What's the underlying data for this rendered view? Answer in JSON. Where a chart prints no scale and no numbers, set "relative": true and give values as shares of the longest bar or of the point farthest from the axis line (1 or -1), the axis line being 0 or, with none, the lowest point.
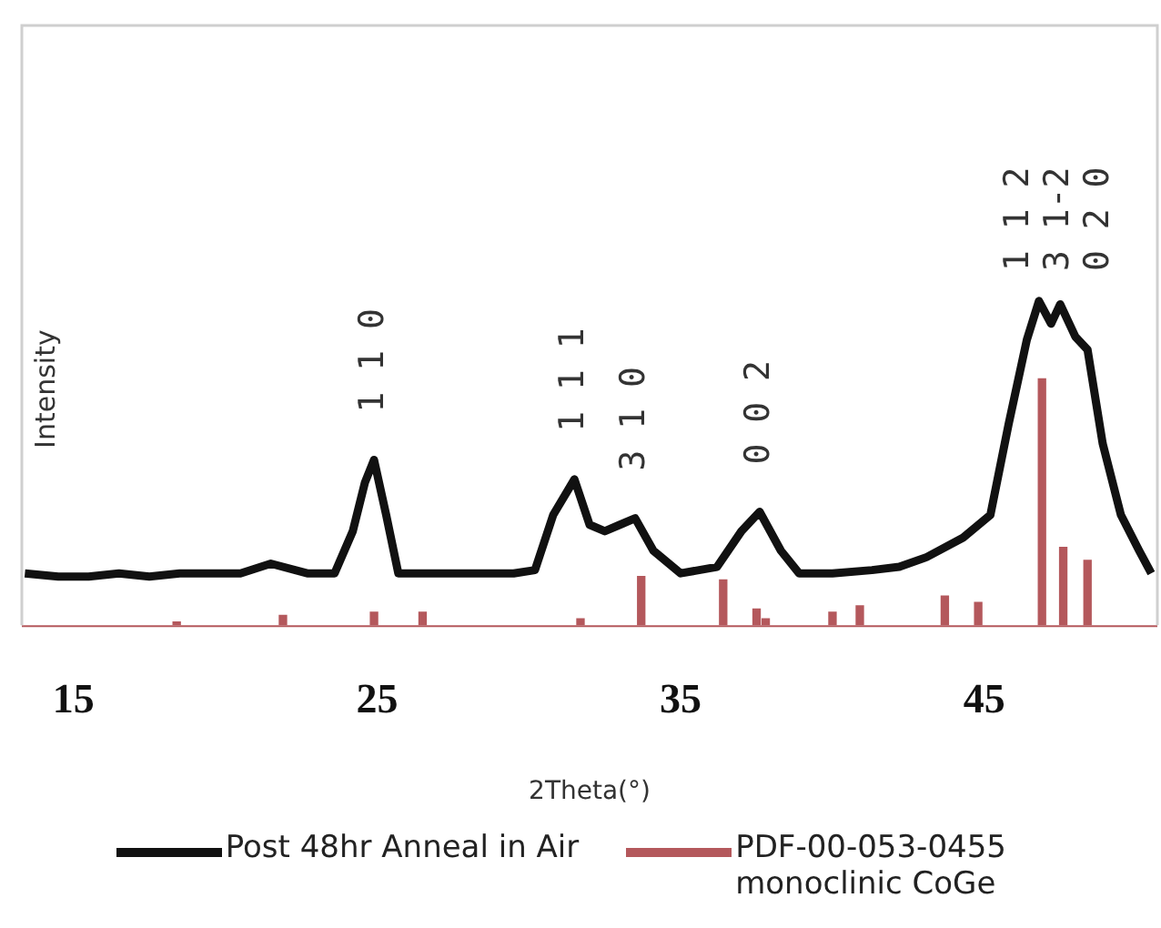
{
  "chart_data": {
    "type": "line",
    "relative": true,
    "xlabel": "2Theta(°)",
    "ylabel": "Intensity",
    "xlim": [
      13.3,
      50.7
    ],
    "xticks": [
      15,
      25,
      35,
      45
    ],
    "grid": false,
    "legend": "bottom",
    "marker": "none",
    "series": [
      {
        "name": "Post 48hr Anneal in Air",
        "color": "#111111",
        "x": [
          13.4,
          14.5,
          15.5,
          16.5,
          17.5,
          18.5,
          19.5,
          20.5,
          21.5,
          22.7,
          23.6,
          24.2,
          24.6,
          24.9,
          25.3,
          25.7,
          26.5,
          28.1,
          29.5,
          30.2,
          30.8,
          31.5,
          32.0,
          32.5,
          33.0,
          33.5,
          34.1,
          35.0,
          36.2,
          37.0,
          37.6,
          38.3,
          38.9,
          40.0,
          41.3,
          42.2,
          43.1,
          44.3,
          45.2,
          45.8,
          46.4,
          46.8,
          47.2,
          47.5,
          48.0,
          48.4,
          48.9,
          49.5,
          50.1,
          50.5
        ],
        "values": [
          0.16,
          0.15,
          0.15,
          0.16,
          0.15,
          0.16,
          0.16,
          0.16,
          0.19,
          0.16,
          0.16,
          0.29,
          0.44,
          0.51,
          0.34,
          0.16,
          0.16,
          0.16,
          0.16,
          0.17,
          0.34,
          0.45,
          0.31,
          0.29,
          0.31,
          0.33,
          0.23,
          0.16,
          0.18,
          0.29,
          0.35,
          0.23,
          0.16,
          0.16,
          0.17,
          0.18,
          0.21,
          0.27,
          0.34,
          0.62,
          0.88,
          1.0,
          0.93,
          0.99,
          0.89,
          0.85,
          0.56,
          0.34,
          0.23,
          0.16
        ]
      },
      {
        "name": "PDF-00-053-0455 monoclinic CoGe",
        "type": "bar",
        "color": "#b4585c",
        "x": [
          18.4,
          21.9,
          24.9,
          26.5,
          31.7,
          33.7,
          36.4,
          37.5,
          37.8,
          40.0,
          40.9,
          43.7,
          44.8,
          46.9,
          47.6,
          48.4
        ],
        "values": [
          0.01,
          0.03,
          0.04,
          0.04,
          0.02,
          0.15,
          0.14,
          0.05,
          0.02,
          0.04,
          0.06,
          0.09,
          0.07,
          0.76,
          0.24,
          0.2
        ]
      }
    ],
    "annotations": [
      {
        "text": "1 1 0",
        "x": 24.9,
        "y": 0.51
      },
      {
        "text": "1 1 1",
        "x": 31.5,
        "y": 0.45
      },
      {
        "text": "3 1 0",
        "x": 33.5,
        "y": 0.33
      },
      {
        "text": "0 0 2",
        "x": 37.6,
        "y": 0.35
      },
      "1 1 2",
      "3 1-2",
      "0 2 0"
    ]
  }
}
